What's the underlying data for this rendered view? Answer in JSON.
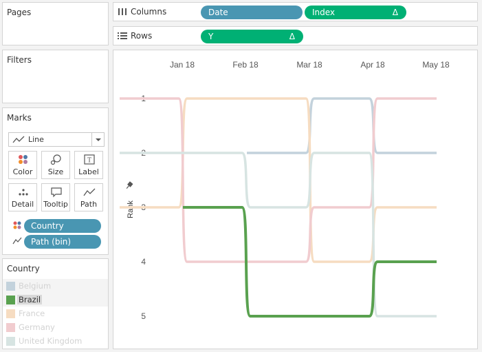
{
  "panels": {
    "pages_title": "Pages",
    "filters_title": "Filters",
    "marks_title": "Marks"
  },
  "marks": {
    "mark_type": "Line",
    "buttons": [
      {
        "label": "Color",
        "icon": "color-dots-icon"
      },
      {
        "label": "Size",
        "icon": "size-icon"
      },
      {
        "label": "Label",
        "icon": "label-icon"
      },
      {
        "label": "Detail",
        "icon": "detail-icon"
      },
      {
        "label": "Tooltip",
        "icon": "tooltip-icon"
      },
      {
        "label": "Path",
        "icon": "path-icon"
      }
    ],
    "fields": [
      {
        "name": "Country",
        "icon": "color-dots-icon"
      },
      {
        "name": "Path (bin)",
        "icon": "path-icon"
      }
    ]
  },
  "shelves": {
    "columns_label": "Columns",
    "rows_label": "Rows",
    "columns_pills": [
      {
        "name": "Date",
        "delta": ""
      },
      {
        "name": "Index",
        "delta": "Δ"
      }
    ],
    "rows_pills": [
      {
        "name": "Y",
        "delta": "Δ"
      }
    ]
  },
  "legend": {
    "title": "Country",
    "items": [
      {
        "name": "Belgium",
        "color": "#c3d2dc",
        "faded": true
      },
      {
        "name": "Brazil",
        "color": "#59a14f",
        "faded": false,
        "highlighted": true
      },
      {
        "name": "France",
        "color": "#f6dcc1",
        "faded": true
      },
      {
        "name": "Germany",
        "color": "#f1cccf",
        "faded": true
      },
      {
        "name": "United Kingdom",
        "color": "#d7e4e2",
        "faded": true
      }
    ]
  },
  "chart_data": {
    "type": "line",
    "subtype": "bump-chart",
    "x_labels": [
      "Jan 18",
      "Feb 18",
      "Mar 18",
      "Apr 18",
      "May 18"
    ],
    "ylabel": "Rank",
    "y_ticks": [
      1,
      2,
      3,
      4,
      5
    ],
    "ylim": [
      1,
      5
    ],
    "y_reversed": true,
    "highlighted_series": "Brazil",
    "series": [
      {
        "name": "Belgium",
        "color": "#c3d2dc",
        "values": [
          null,
          null,
          2,
          1,
          2
        ]
      },
      {
        "name": "Brazil",
        "color": "#59a14f",
        "values": [
          null,
          3,
          5,
          5,
          4
        ]
      },
      {
        "name": "France",
        "color": "#f6dcc1",
        "values": [
          3,
          1,
          1,
          4,
          3
        ]
      },
      {
        "name": "Germany",
        "color": "#f1cccf",
        "values": [
          1,
          4,
          4,
          3,
          1
        ]
      },
      {
        "name": "United Kingdom",
        "color": "#d7e4e2",
        "values": [
          2,
          2,
          3,
          2,
          5
        ]
      }
    ]
  }
}
